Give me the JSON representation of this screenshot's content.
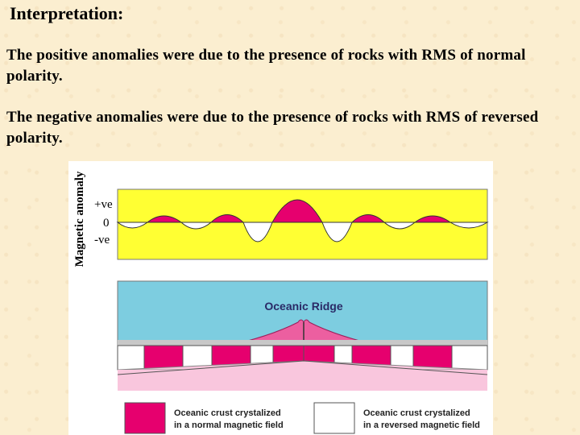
{
  "title": "Interpretation:",
  "paragraphs": [
    "The positive anomalies were due to the presence of rocks with RMS of normal polarity.",
    "The negative anomalies were due to the presence of rocks with RMS of reversed polarity."
  ],
  "figure": {
    "y_axis_label": "Magnetic anomaly",
    "pos_label": "+ve",
    "zero_label": "0",
    "neg_label": "-ve",
    "ridge_label": "Oceanic Ridge",
    "legend_normal_line1": "Oceanic crust crystalized",
    "legend_normal_line2": "in a normal magnetic field",
    "legend_reversed_line1": "Oceanic crust crystalized",
    "legend_reversed_line2": "in a reversed magnetic field",
    "colors": {
      "anomaly_panel": "#ffff33",
      "normal_crust": "#e6006e",
      "reversed_crust": "#ffffff",
      "ocean": "#7dcde0",
      "mantle": "#f9c6dd",
      "ridge": "#ec5fa0"
    }
  }
}
